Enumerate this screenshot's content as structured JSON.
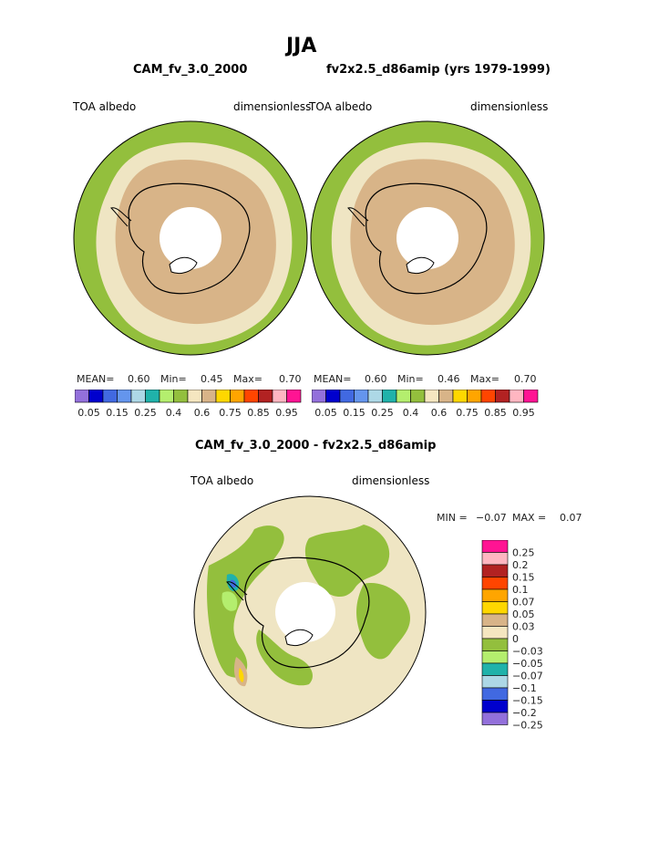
{
  "page": {
    "title": "JJA",
    "diff_title": "CAM_fv_3.0_2000 - fv2x2.5_d86amip"
  },
  "colors": {
    "land": "#efe5c3",
    "mid": "#d8b488",
    "ocean": "#93bf3d",
    "lime": "#bde86f",
    "coast": "#000000"
  },
  "chart_data": [
    {
      "type": "heatmap",
      "title": "CAM_fv_3.0_2000",
      "variable": "TOA albedo",
      "units": "dimensionless",
      "mean_label": "MEAN=",
      "mean": "0.60",
      "min_label": "Min=",
      "min": "0.45",
      "max_label": "Max=",
      "max": "0.70",
      "levels": [
        "0.05",
        "0.15",
        "0.25",
        "0.4",
        "0.6",
        "0.75",
        "0.85",
        "0.95"
      ],
      "colors": [
        "#9370db",
        "#0000cd",
        "#4169e1",
        "#6495ed",
        "#add8e6",
        "#20b2aa",
        "#b4ee6e",
        "#93bf3d",
        "#f5e6c0",
        "#d8b488",
        "#ffd700",
        "#ffa500",
        "#ff4500",
        "#b22222",
        "#ffb6c1",
        "#ff1493"
      ]
    },
    {
      "type": "heatmap",
      "title": "fv2x2.5_d86amip (yrs 1979-1999)",
      "variable": "TOA albedo",
      "units": "dimensionless",
      "mean_label": "MEAN=",
      "mean": "0.60",
      "min_label": "Min=",
      "min": "0.46",
      "max_label": "Max=",
      "max": "0.70",
      "levels": [
        "0.05",
        "0.15",
        "0.25",
        "0.4",
        "0.6",
        "0.75",
        "0.85",
        "0.95"
      ],
      "colors": [
        "#9370db",
        "#0000cd",
        "#4169e1",
        "#6495ed",
        "#add8e6",
        "#20b2aa",
        "#b4ee6e",
        "#93bf3d",
        "#f5e6c0",
        "#d8b488",
        "#ffd700",
        "#ffa500",
        "#ff4500",
        "#b22222",
        "#ffb6c1",
        "#ff1493"
      ]
    },
    {
      "type": "heatmap",
      "title": "CAM_fv_3.0_2000 - fv2x2.5_d86amip",
      "variable": "TOA albedo",
      "units": "dimensionless",
      "min_label": "MIN =",
      "min": "−0.07",
      "max_label": "MAX =",
      "max": "0.07",
      "levels": [
        "0.25",
        "0.2",
        "0.15",
        "0.1",
        "0.07",
        "0.05",
        "0.03",
        "0",
        "−0.03",
        "−0.05",
        "−0.07",
        "−0.1",
        "−0.15",
        "−0.2",
        "−0.25"
      ],
      "colors": [
        "#ff1493",
        "#ffb6c1",
        "#b22222",
        "#ff4500",
        "#ffa500",
        "#ffd700",
        "#d8b488",
        "#f5e6c0",
        "#93bf3d",
        "#b4ee6e",
        "#20b2aa",
        "#add8e6",
        "#4169e1",
        "#0000cd",
        "#9370db"
      ]
    }
  ]
}
